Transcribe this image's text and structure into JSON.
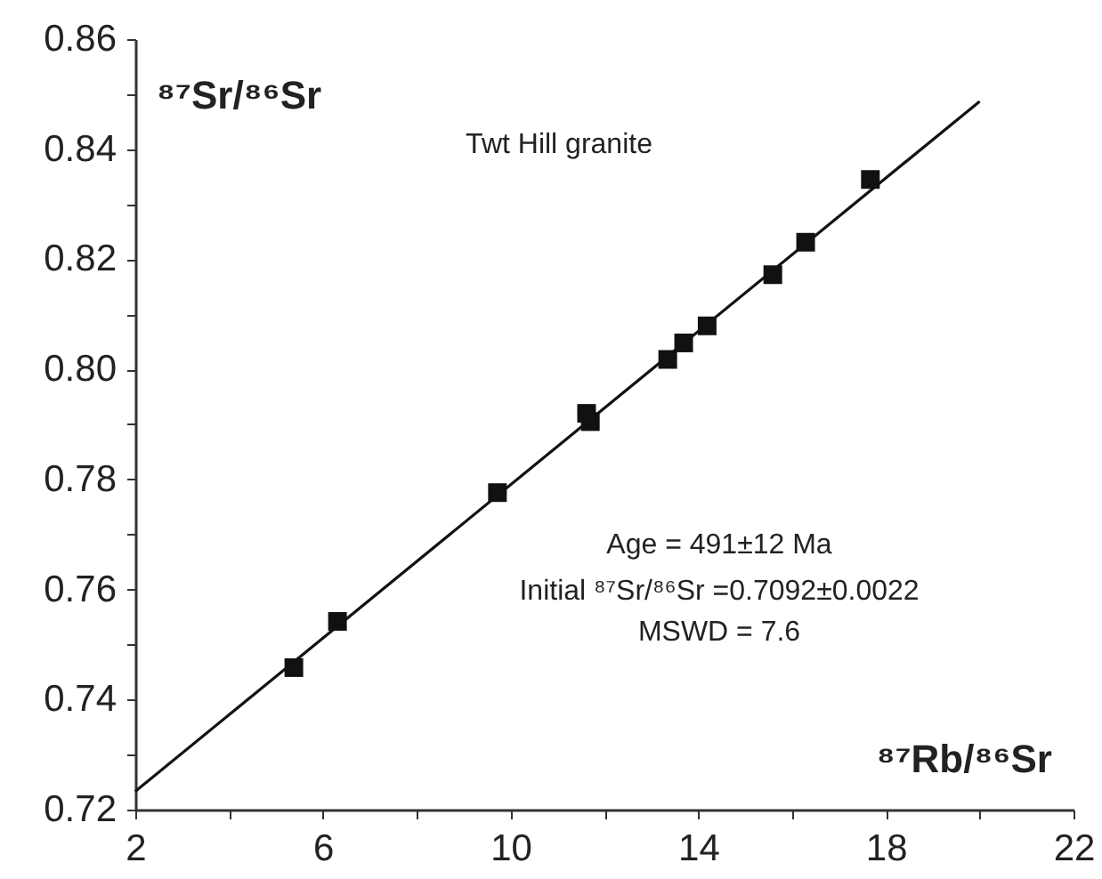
{
  "chart_data": {
    "type": "scatter",
    "xlabel": "⁸⁷Rb/⁸⁶Sr",
    "ylabel": "⁸⁷Sr/⁸⁶Sr",
    "annotations": [
      "Twt Hill granite",
      "Age = 491±12 Ma",
      "Initial ⁸⁷Sr/⁸⁶Sr =0.7092±0.0022",
      "MSWD = 7.6"
    ],
    "grid": false,
    "xlim": [
      2,
      22
    ],
    "xticks": [
      2,
      {
        "value": 4,
        "label": null
      },
      6,
      {
        "value": 8,
        "label": null
      },
      10,
      {
        "value": 12,
        "label": null
      },
      14,
      {
        "value": 16,
        "label": null
      },
      18,
      {
        "value": 20,
        "label": null
      },
      22
    ],
    "ylim": [
      0.72,
      0.86
    ],
    "yticks": [
      0.72,
      {
        "value": 0.73,
        "label": null
      },
      0.74,
      {
        "value": 0.75,
        "label": null
      },
      0.76,
      {
        "value": 0.77,
        "label": null
      },
      0.78,
      {
        "value": 0.79,
        "label": null
      },
      {
        "value": 0.8,
        "label": "0.80"
      },
      {
        "value": 0.81,
        "label": null
      },
      0.82,
      {
        "value": 0.83,
        "label": null
      },
      0.84,
      {
        "value": 0.85,
        "label": null
      },
      0.86
    ],
    "series": [
      {
        "marker": "square",
        "color": "#111111",
        "x": [
          5.38,
          6.31,
          9.72,
          11.62,
          11.7,
          13.35,
          13.69,
          14.19,
          15.59,
          16.29,
          17.67
        ],
        "values": [
          0.7458,
          0.7542,
          0.7776,
          0.792,
          0.7905,
          0.8018,
          0.8048,
          0.8079,
          0.8172,
          0.8231,
          0.8345
        ]
      },
      {
        "type": "line",
        "color": "#111111",
        "line_style": "solid",
        "x": [
          2,
          20
        ],
        "values": [
          0.7233,
          0.8487
        ]
      }
    ]
  }
}
